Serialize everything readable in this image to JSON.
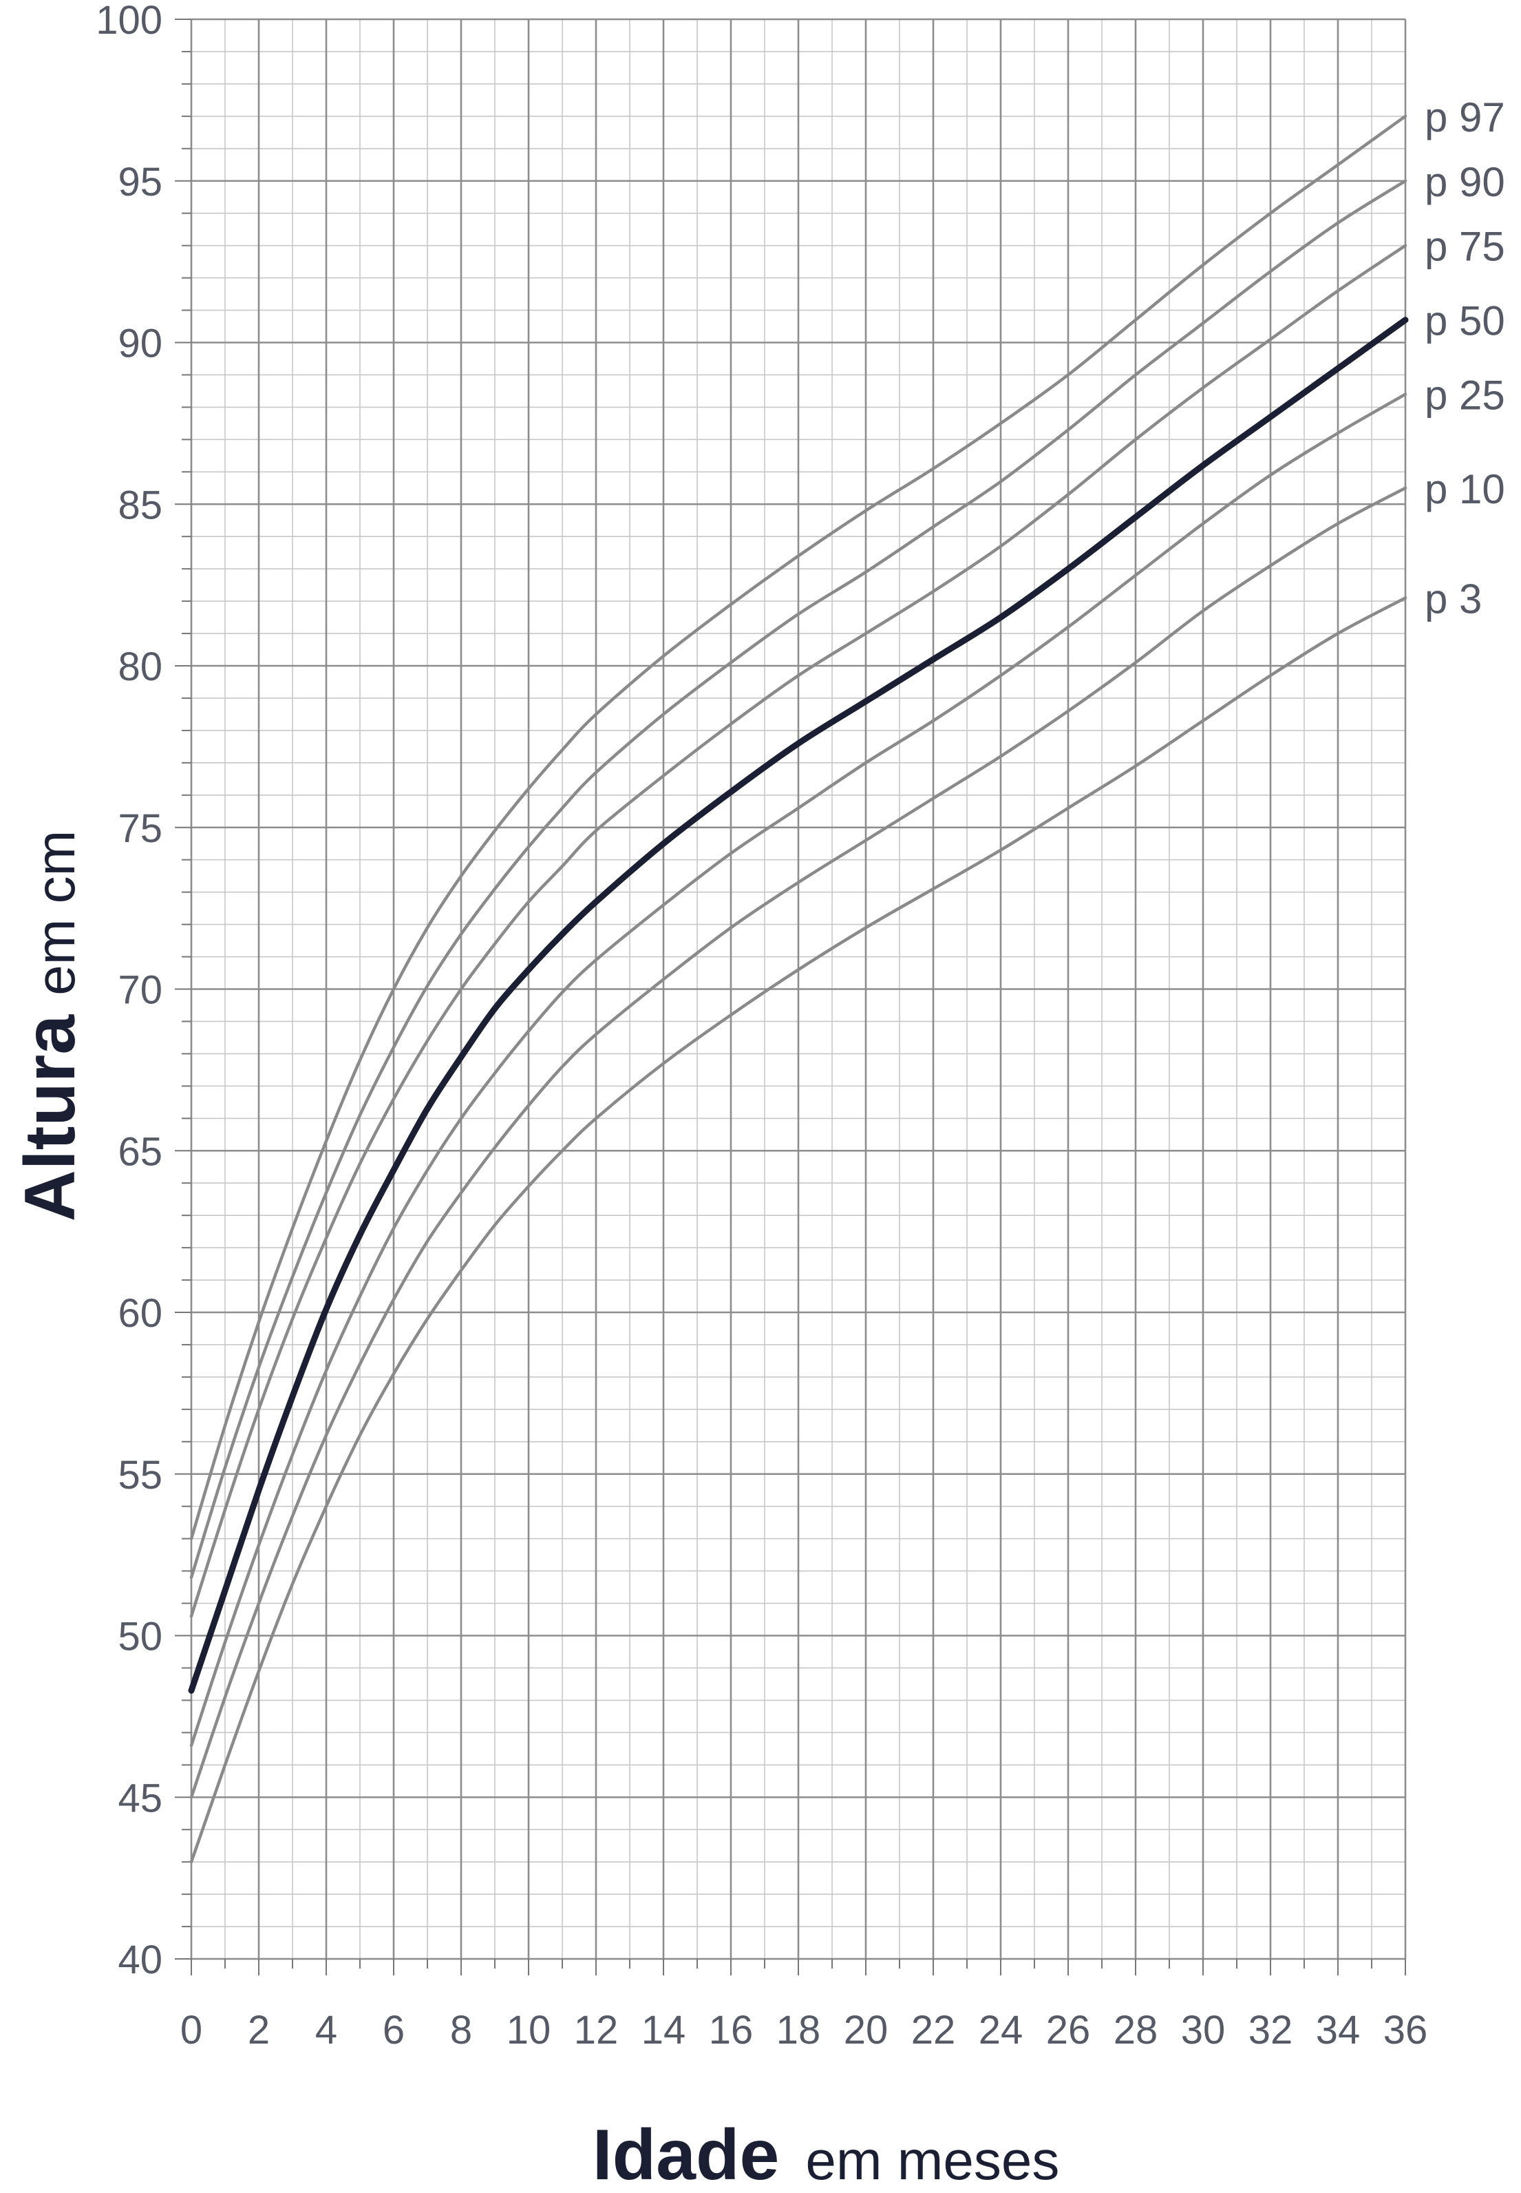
{
  "chart_data": {
    "type": "line",
    "xlabel_main": "Idade",
    "xlabel_unit": "em meses",
    "ylabel_main": "Altura",
    "ylabel_unit": "em cm",
    "xlim": [
      0,
      36
    ],
    "ylim": [
      40,
      100
    ],
    "x_ticks": [
      "0",
      "2",
      "4",
      "6",
      "8",
      "10",
      "12",
      "14",
      "16",
      "18",
      "20",
      "22",
      "24",
      "26",
      "28",
      "30",
      "32",
      "34",
      "36"
    ],
    "y_ticks": [
      "40",
      "45",
      "50",
      "55",
      "60",
      "65",
      "70",
      "75",
      "80",
      "85",
      "90",
      "95",
      "100"
    ],
    "grid": true,
    "x": [
      0,
      1,
      2,
      3,
      4,
      5,
      6,
      7,
      8,
      9,
      10,
      11,
      12,
      14,
      16,
      18,
      20,
      22,
      24,
      26,
      28,
      30,
      32,
      34,
      36
    ],
    "series": [
      {
        "name": "p 97",
        "highlight": false,
        "values": [
          53.0,
          56.5,
          59.7,
          62.6,
          65.3,
          67.8,
          70.0,
          71.9,
          73.5,
          74.9,
          76.2,
          77.4,
          78.5,
          80.3,
          81.9,
          83.4,
          84.8,
          86.1,
          87.5,
          89.0,
          90.7,
          92.4,
          94.0,
          95.5,
          97.0
        ]
      },
      {
        "name": "p 90",
        "highlight": false,
        "values": [
          51.8,
          55.2,
          58.3,
          61.1,
          63.7,
          66.1,
          68.2,
          70.1,
          71.7,
          73.1,
          74.4,
          75.6,
          76.7,
          78.5,
          80.1,
          81.6,
          82.9,
          84.3,
          85.7,
          87.3,
          89.0,
          90.6,
          92.2,
          93.7,
          95.0
        ]
      },
      {
        "name": "p 75",
        "highlight": false,
        "values": [
          50.6,
          53.9,
          57.0,
          59.8,
          62.3,
          64.6,
          66.6,
          68.4,
          70.0,
          71.4,
          72.7,
          73.8,
          74.9,
          76.6,
          78.2,
          79.7,
          81.0,
          82.3,
          83.7,
          85.3,
          87.0,
          88.6,
          90.1,
          91.6,
          93.0
        ]
      },
      {
        "name": "p 50",
        "highlight": true,
        "values": [
          48.3,
          51.4,
          54.5,
          57.4,
          60.1,
          62.4,
          64.4,
          66.3,
          67.9,
          69.4,
          70.6,
          71.7,
          72.7,
          74.5,
          76.1,
          77.6,
          78.9,
          80.2,
          81.5,
          83.0,
          84.6,
          86.2,
          87.7,
          89.2,
          90.7
        ]
      },
      {
        "name": "p 25",
        "highlight": false,
        "values": [
          46.6,
          49.8,
          52.8,
          55.6,
          58.2,
          60.5,
          62.6,
          64.4,
          66.0,
          67.4,
          68.7,
          69.9,
          70.9,
          72.6,
          74.2,
          75.6,
          77.0,
          78.3,
          79.7,
          81.2,
          82.8,
          84.4,
          85.9,
          87.2,
          88.4
        ]
      },
      {
        "name": "p 10",
        "highlight": false,
        "values": [
          45.0,
          48.1,
          51.0,
          53.7,
          56.2,
          58.4,
          60.4,
          62.2,
          63.7,
          65.1,
          66.4,
          67.6,
          68.6,
          70.3,
          71.9,
          73.3,
          74.6,
          75.9,
          77.2,
          78.6,
          80.1,
          81.7,
          83.1,
          84.4,
          85.5
        ]
      },
      {
        "name": "p 3",
        "highlight": false,
        "values": [
          43.0,
          46.0,
          48.9,
          51.6,
          54.0,
          56.2,
          58.1,
          59.8,
          61.3,
          62.7,
          63.9,
          65.0,
          66.0,
          67.7,
          69.2,
          70.6,
          71.9,
          73.1,
          74.3,
          75.6,
          76.9,
          78.3,
          79.7,
          81.0,
          82.1
        ]
      }
    ],
    "colors": {
      "percentile": "#8a8a8a",
      "median": "#1a1f33",
      "grid_major": "#8d8d8d",
      "grid_minor": "#c8c8c8",
      "axis": "#777777"
    }
  }
}
